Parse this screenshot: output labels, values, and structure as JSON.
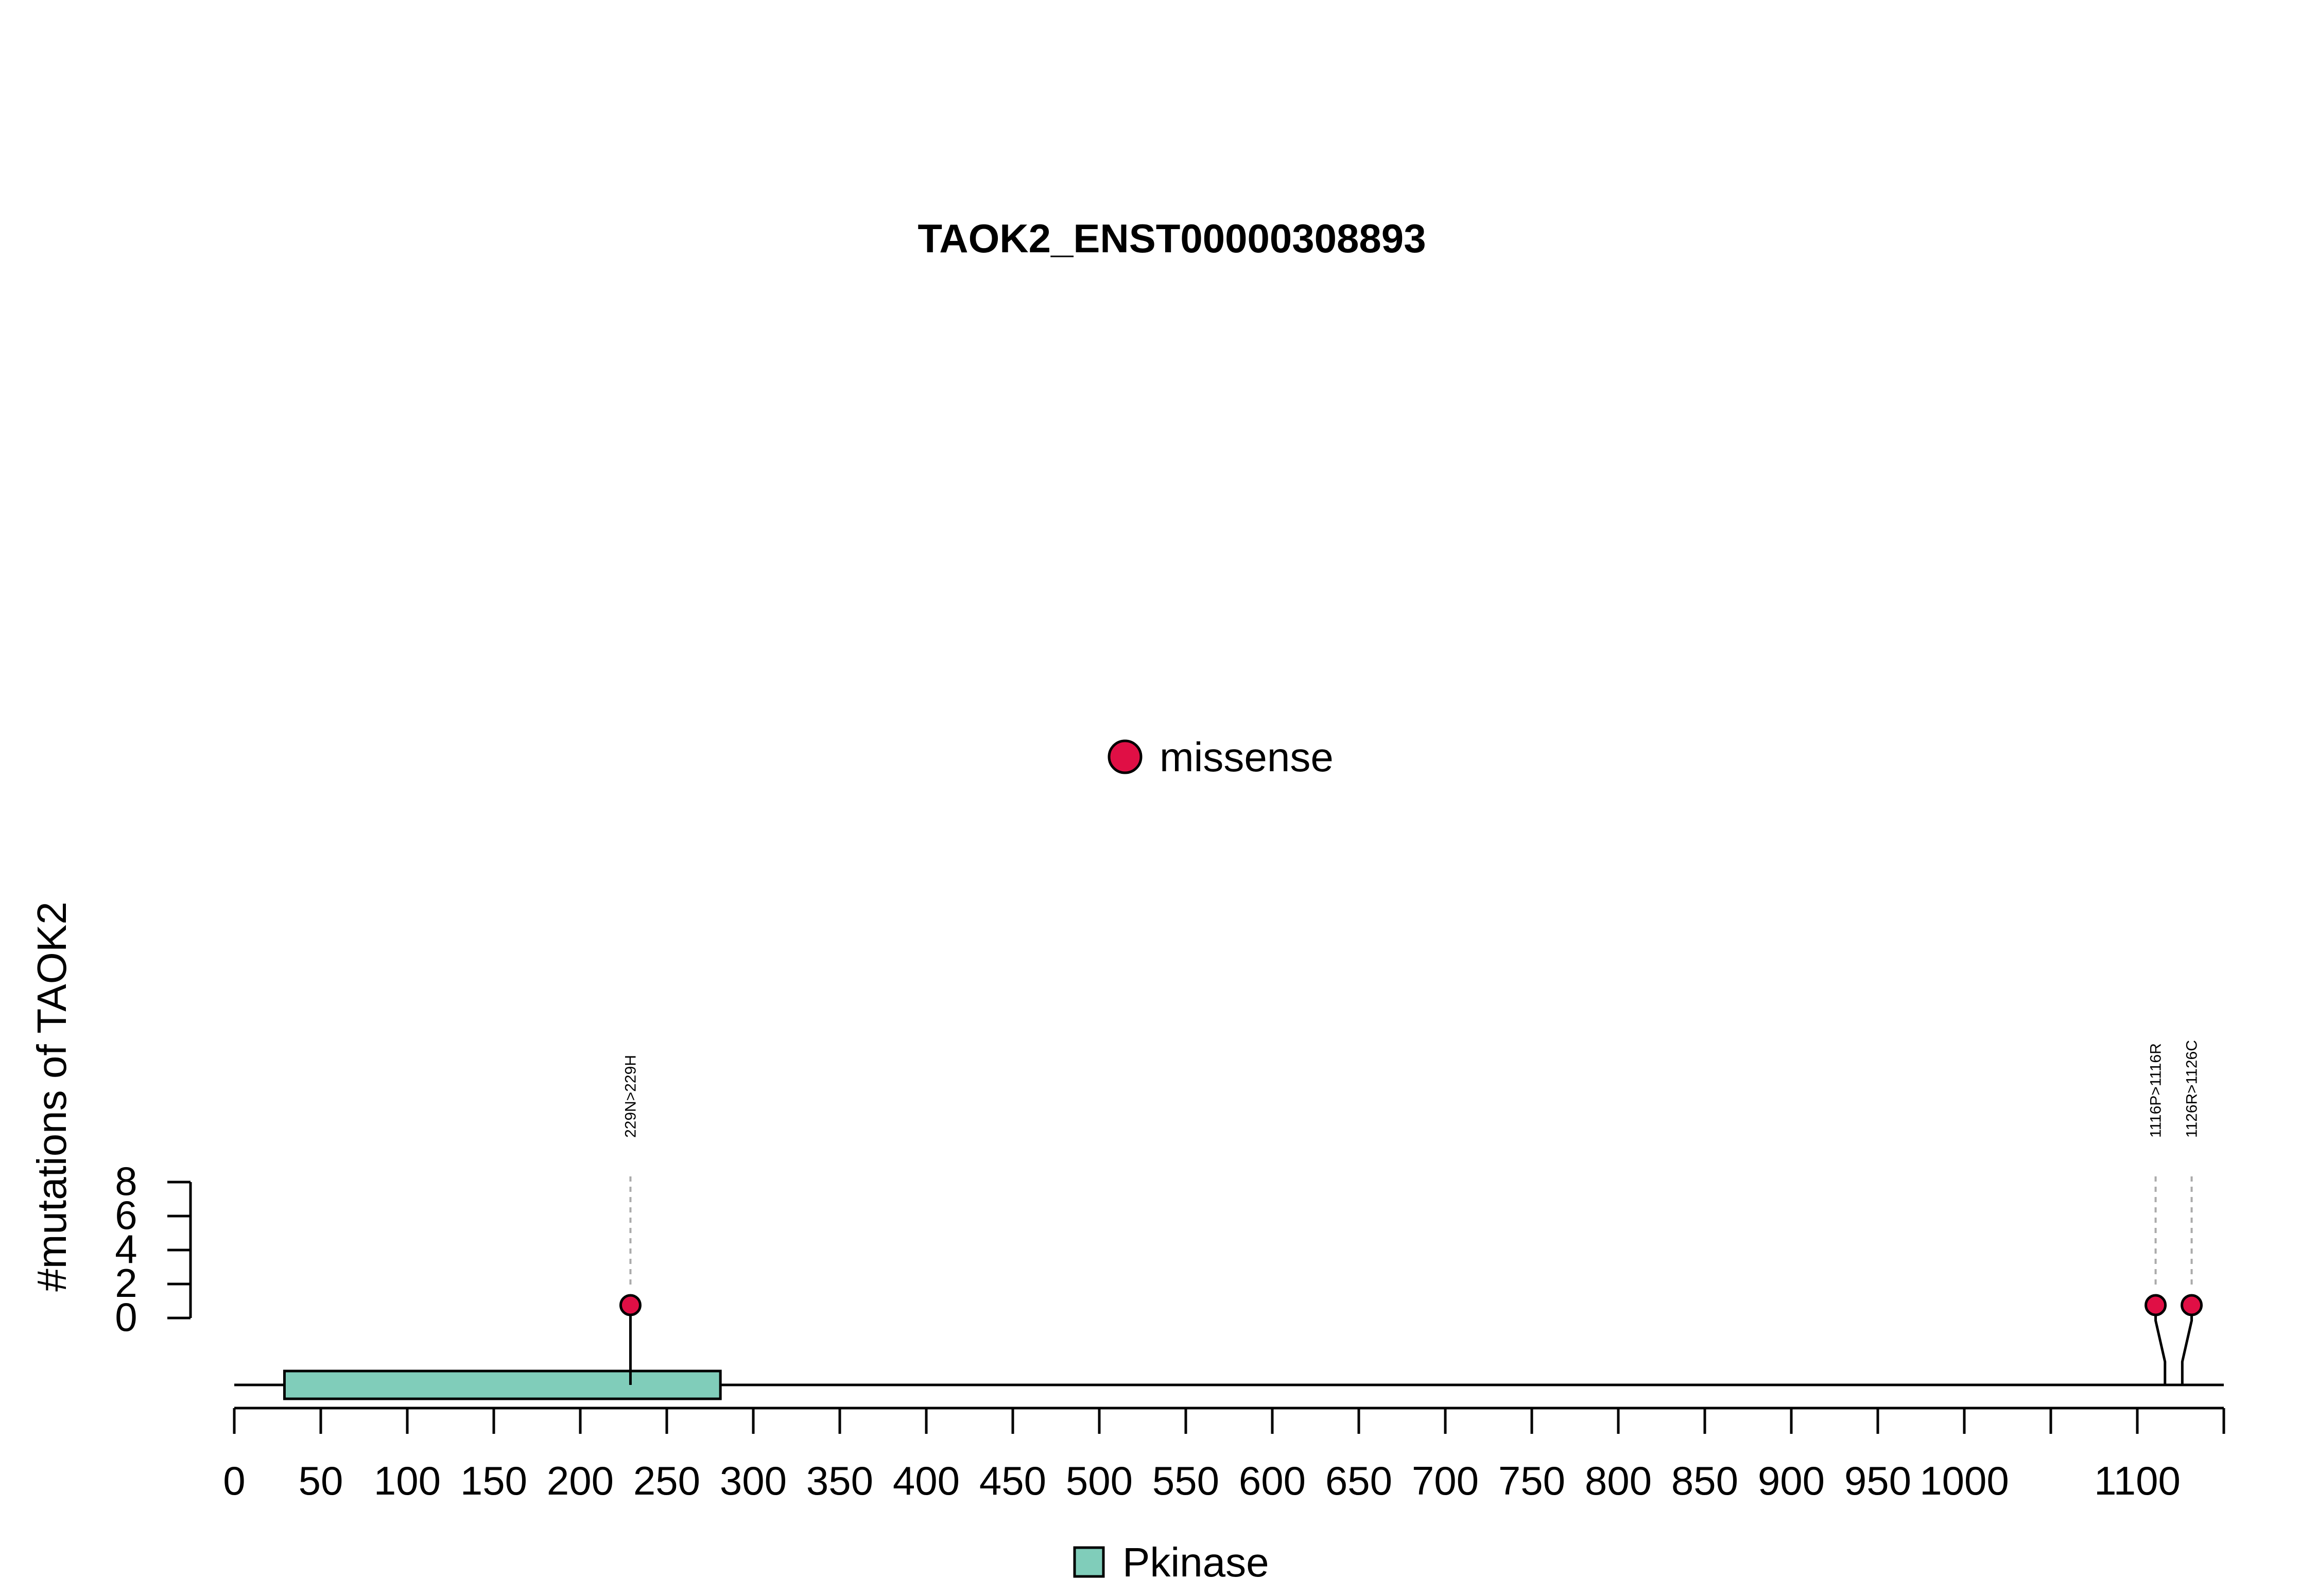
{
  "chart_data": {
    "type": "lollipop",
    "title": "TAOK2_ENST00000308893",
    "ylabel": "#mutations of TAOK2",
    "xlabel": "",
    "xlim": [
      0,
      1150
    ],
    "ylim": [
      0,
      8
    ],
    "x_ticks": [
      0,
      50,
      100,
      150,
      200,
      250,
      300,
      350,
      400,
      450,
      500,
      550,
      600,
      650,
      700,
      750,
      800,
      850,
      900,
      950,
      1000,
      1050,
      1100,
      1150
    ],
    "x_tick_labels": [
      "0",
      "50",
      "100",
      "150",
      "200",
      "250",
      "300",
      "350",
      "400",
      "450",
      "500",
      "550",
      "600",
      "650",
      "700",
      "750",
      "800",
      "850",
      "900",
      "950",
      "1000",
      "",
      "1100",
      ""
    ],
    "y_ticks": [
      0,
      2,
      4,
      6,
      8
    ],
    "y_tick_labels": [
      "0",
      "2",
      "4",
      "6",
      "8"
    ],
    "mutations": [
      {
        "label": "229N>229H",
        "position": 229,
        "count": 1,
        "type": "missense"
      },
      {
        "label": "1116P>1116R",
        "position": 1116,
        "count": 1,
        "type": "missense"
      },
      {
        "label": "1126R>1126C",
        "position": 1126,
        "count": 1,
        "type": "missense"
      }
    ],
    "domains": [
      {
        "name": "Pkinase",
        "start": 29,
        "end": 281,
        "color": "#80CDBA"
      }
    ],
    "protein_length": 1150,
    "legend_mutation": {
      "label": "missense",
      "color": "#E00F45"
    },
    "legend_domain": {
      "label": "Pkinase",
      "color": "#80CDBA"
    },
    "grid": false
  }
}
